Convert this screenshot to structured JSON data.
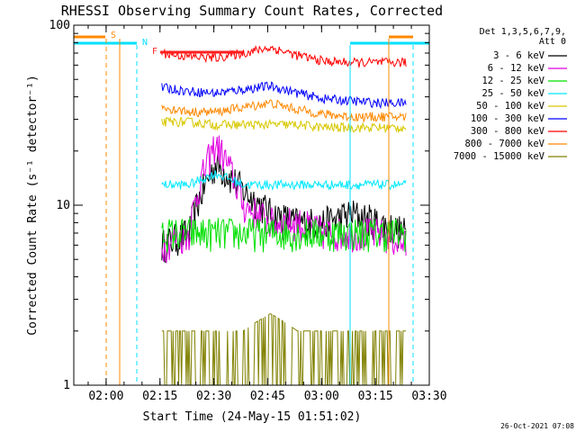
{
  "chart_data": {
    "type": "line",
    "title": "RHESSI Observing Summary Count Rates, Corrected",
    "xlabel": "Start Time (24-May-15 01:51:02)",
    "ylabel": "Corrected Count Rate (s⁻¹ detector⁻¹)",
    "y_scale": "log",
    "ylim": [
      1,
      100
    ],
    "xlim": [
      "01:51",
      "03:30"
    ],
    "x_ticks": [
      "02:00",
      "02:15",
      "02:30",
      "02:45",
      "03:00",
      "03:15",
      "03:30"
    ],
    "y_ticks": [
      "1",
      "10",
      "100"
    ],
    "legend_header": [
      "Det 1,3,5,6,7,9,",
      "Att 0"
    ],
    "legend_position": "right",
    "timestamp": "26-Oct-2021 07:08",
    "markers": [
      {
        "label": "S",
        "color": "#ff8800"
      },
      {
        "label": "N",
        "color": "#00e0ff"
      },
      {
        "label": "F",
        "color": "#ff2020"
      }
    ],
    "series": [
      {
        "name": "3 - 6 keV",
        "color": "#000000",
        "values": [
          6,
          7,
          17,
          12,
          9,
          8,
          8,
          9,
          8,
          7
        ]
      },
      {
        "name": "6 - 12 keV",
        "color": "#e000e0",
        "values": [
          6,
          7,
          22,
          10,
          8,
          8,
          7,
          7,
          7,
          6
        ]
      },
      {
        "name": "12 - 25 keV",
        "color": "#00e000",
        "values": [
          7,
          7,
          7,
          7,
          7,
          7,
          7,
          7,
          7,
          7
        ]
      },
      {
        "name": "25 - 50 keV",
        "color": "#00e8ff",
        "values": [
          13,
          13,
          15,
          13,
          13,
          13,
          13,
          13,
          13,
          13
        ]
      },
      {
        "name": "50 - 100 keV",
        "color": "#d8c800",
        "values": [
          29,
          29,
          28,
          28,
          28,
          28,
          27,
          27,
          27,
          27
        ]
      },
      {
        "name": "100 - 300 keV",
        "color": "#0000ff",
        "values": [
          45,
          43,
          42,
          44,
          46,
          42,
          39,
          38,
          37,
          37
        ]
      },
      {
        "name": "300 - 800 keV",
        "color": "#ff0000",
        "values": [
          70,
          67,
          66,
          70,
          75,
          68,
          63,
          62,
          62,
          62
        ]
      },
      {
        "name": "800 - 7000 keV",
        "color": "#ff8800",
        "values": [
          35,
          33,
          33,
          35,
          37,
          34,
          32,
          31,
          31,
          31
        ]
      },
      {
        "name": "7000 - 15000 keV",
        "color": "#808000",
        "values": [
          2,
          2,
          2,
          2,
          2.5,
          2,
          2,
          2,
          2,
          2
        ]
      }
    ]
  }
}
